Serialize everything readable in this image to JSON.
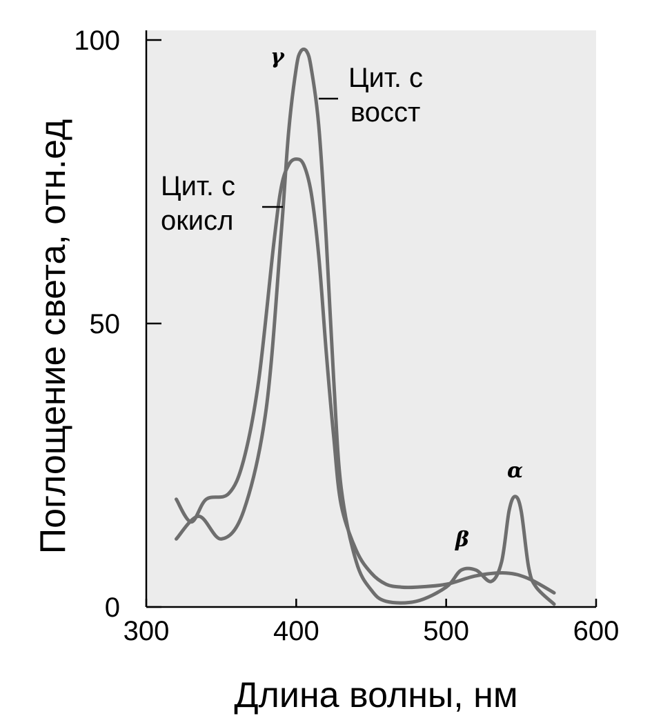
{
  "chart_data": {
    "type": "line",
    "xlabel": "Длина волны, нм",
    "ylabel": "Поглощение света, отн.ед",
    "xlim": [
      300,
      600
    ],
    "ylim": [
      0,
      100
    ],
    "x_ticks": [
      "300",
      "400",
      "500",
      "600"
    ],
    "y_ticks": [
      "0",
      "50",
      "100"
    ],
    "grid": false,
    "background": "#ececec",
    "series": [
      {
        "name": "Цит. с восст",
        "color": "#6e6e6e",
        "x": [
          320,
          335,
          350,
          365,
          380,
          390,
          395,
          400,
          403,
          407,
          410,
          415,
          420,
          425,
          430,
          440,
          450,
          460,
          480,
          500,
          510,
          520,
          530,
          537,
          542,
          546,
          550,
          555,
          560,
          572
        ],
        "y": [
          12,
          16,
          12,
          17,
          35,
          66,
          84,
          95,
          98,
          98,
          95,
          85,
          65,
          40,
          21,
          8,
          3,
          1,
          1,
          3.5,
          6.5,
          6.5,
          4.5,
          8,
          17,
          19.5,
          17,
          7,
          3.5,
          0.5
        ]
      },
      {
        "name": "Цит. с окисл",
        "color": "#6e6e6e",
        "x": [
          320,
          330,
          340,
          355,
          365,
          375,
          385,
          390,
          395,
          400,
          405,
          410,
          415,
          420,
          425,
          430,
          440,
          450,
          460,
          470,
          480,
          500,
          520,
          540,
          555,
          572
        ],
        "y": [
          19,
          15,
          19,
          20,
          26,
          40,
          64,
          74,
          78,
          79,
          78,
          73,
          62,
          45,
          30,
          18,
          10,
          6,
          4,
          3.5,
          3.5,
          4,
          5.5,
          6,
          5,
          2.5
        ]
      }
    ],
    "annotations": [
      {
        "text": "γ",
        "x": 393,
        "y": 94
      },
      {
        "text": "β",
        "x": 512,
        "y": 9
      },
      {
        "text": "α",
        "x": 548,
        "y": 21.5
      }
    ],
    "series_labels": [
      {
        "series": 0,
        "lines": [
          "Цит. с",
          "восст"
        ]
      },
      {
        "series": 1,
        "lines": [
          "Цит. с",
          "окисл"
        ]
      }
    ]
  }
}
